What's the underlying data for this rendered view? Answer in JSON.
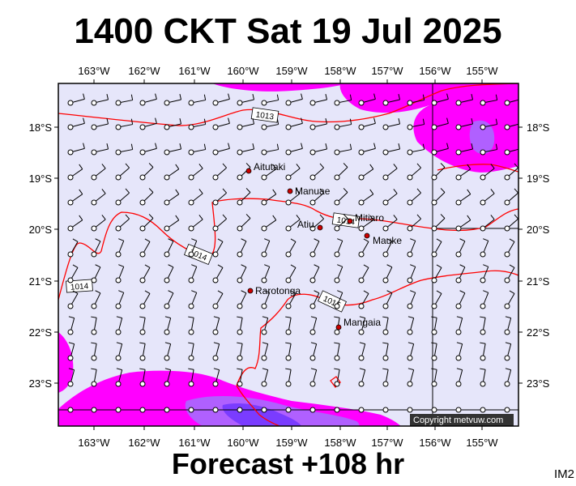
{
  "title": "1400 CKT Sat 19 Jul 2025",
  "footer": "Forecast +108 hr",
  "corner_label": "IM2",
  "copyright": "Copyright metvuw.com",
  "lon_labels": [
    "163°W",
    "162°W",
    "161°W",
    "160°W",
    "159°W",
    "158°W",
    "157°W",
    "156°W",
    "155°W"
  ],
  "lat_labels": [
    "18°S",
    "19°S",
    "20°S",
    "21°S",
    "22°S",
    "23°S"
  ],
  "isobars": [
    "1013",
    "1014",
    "1015",
    "1014",
    "1014"
  ],
  "places": [
    {
      "name": "Aitutaki"
    },
    {
      "name": "Manuae"
    },
    {
      "name": "Atiu"
    },
    {
      "name": "Mitiaro"
    },
    {
      "name": "Mauke"
    },
    {
      "name": "Rarotonga"
    },
    {
      "name": "Mangaia"
    }
  ],
  "colors": {
    "background": "#e6e6fa",
    "rain_light": "#ff00ff",
    "rain_heavy": "#7a3cff",
    "isobar": "#ff0000"
  }
}
